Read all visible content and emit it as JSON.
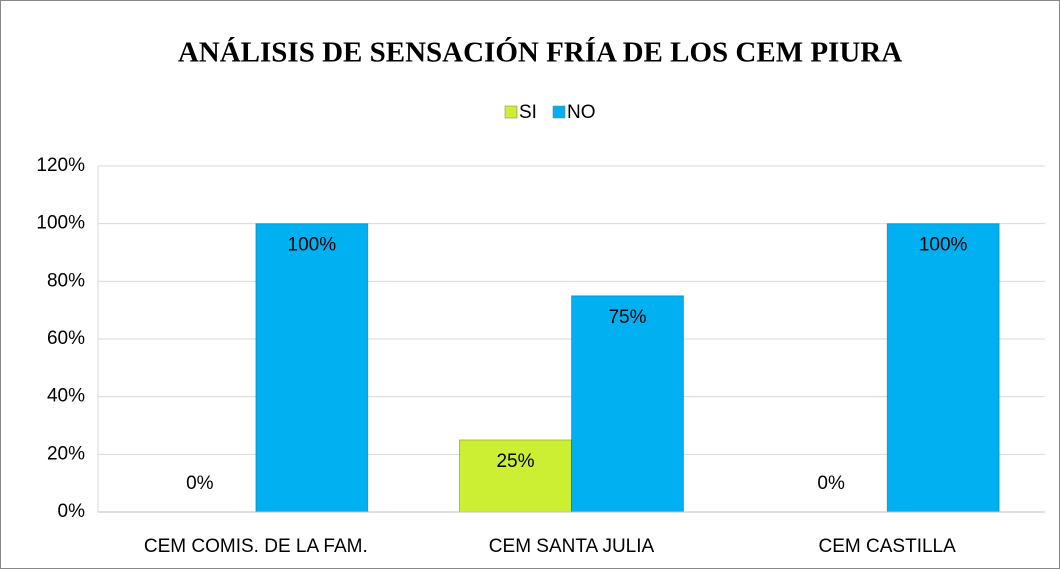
{
  "chart_data": {
    "type": "bar",
    "title": "ANÁLISIS DE SENSACIÓN FRÍA DE LOS CEM PIURA",
    "categories": [
      "CEM COMIS. DE LA FAM.",
      "CEM SANTA JULIA",
      "CEM CASTILLA"
    ],
    "series": [
      {
        "name": "SI",
        "color": "#ccee33",
        "values": [
          0,
          25,
          0
        ],
        "value_labels": [
          "0%",
          "25%",
          "0%"
        ]
      },
      {
        "name": "NO",
        "color": "#00b0f0",
        "values": [
          100,
          75,
          100
        ],
        "value_labels": [
          "100%",
          "75%",
          "100%"
        ]
      }
    ],
    "ylim": [
      0,
      120
    ],
    "yticks": [
      {
        "value": 0,
        "label": "0%"
      },
      {
        "value": 20,
        "label": "20%"
      },
      {
        "value": 40,
        "label": "40%"
      },
      {
        "value": 60,
        "label": "60%"
      },
      {
        "value": 80,
        "label": "80%"
      },
      {
        "value": 100,
        "label": "100%"
      },
      {
        "value": 120,
        "label": "120%"
      }
    ],
    "grid": true,
    "legend": "top"
  }
}
